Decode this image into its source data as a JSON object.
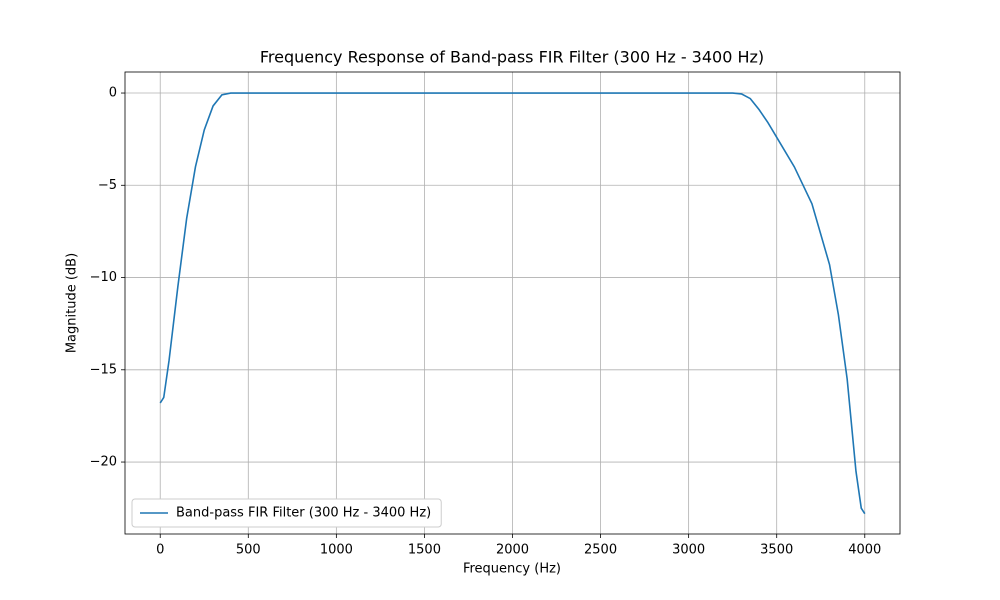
{
  "chart_data": {
    "type": "line",
    "title": "Frequency Response of Band-pass FIR Filter (300 Hz - 3400 Hz)",
    "xlabel": "Frequency (Hz)",
    "ylabel": "Magnitude (dB)",
    "x": [
      0,
      20,
      50,
      100,
      150,
      200,
      250,
      300,
      350,
      400,
      500,
      1000,
      1500,
      2000,
      2500,
      3000,
      3250,
      3300,
      3350,
      3400,
      3450,
      3500,
      3600,
      3700,
      3800,
      3850,
      3900,
      3950,
      3980,
      4000
    ],
    "series": [
      {
        "name": "Band-pass FIR Filter (300 Hz - 3400 Hz)",
        "color": "#1f77b4",
        "values": [
          -16.8,
          -16.5,
          -14.5,
          -10.5,
          -6.8,
          -4,
          -2,
          -0.7,
          -0.1,
          0,
          0,
          0,
          0,
          0,
          0,
          0,
          0,
          -0.05,
          -0.3,
          -0.9,
          -1.6,
          -2.4,
          -4,
          -6,
          -9.3,
          -12,
          -15.5,
          -20.5,
          -22.5,
          -22.8
        ]
      }
    ],
    "xlim": [
      -200,
      4200
    ],
    "ylim": [
      -23.9,
      1.14
    ],
    "xticks": [
      0,
      500,
      1000,
      1500,
      2000,
      2500,
      3000,
      3500,
      4000
    ],
    "yticks": [
      {
        "value": -20,
        "label": "−20"
      },
      {
        "value": -15,
        "label": "−15"
      },
      {
        "value": -10,
        "label": "−10"
      },
      {
        "value": -5,
        "label": "−5"
      },
      0
    ],
    "grid": true,
    "legend": "lower left"
  }
}
